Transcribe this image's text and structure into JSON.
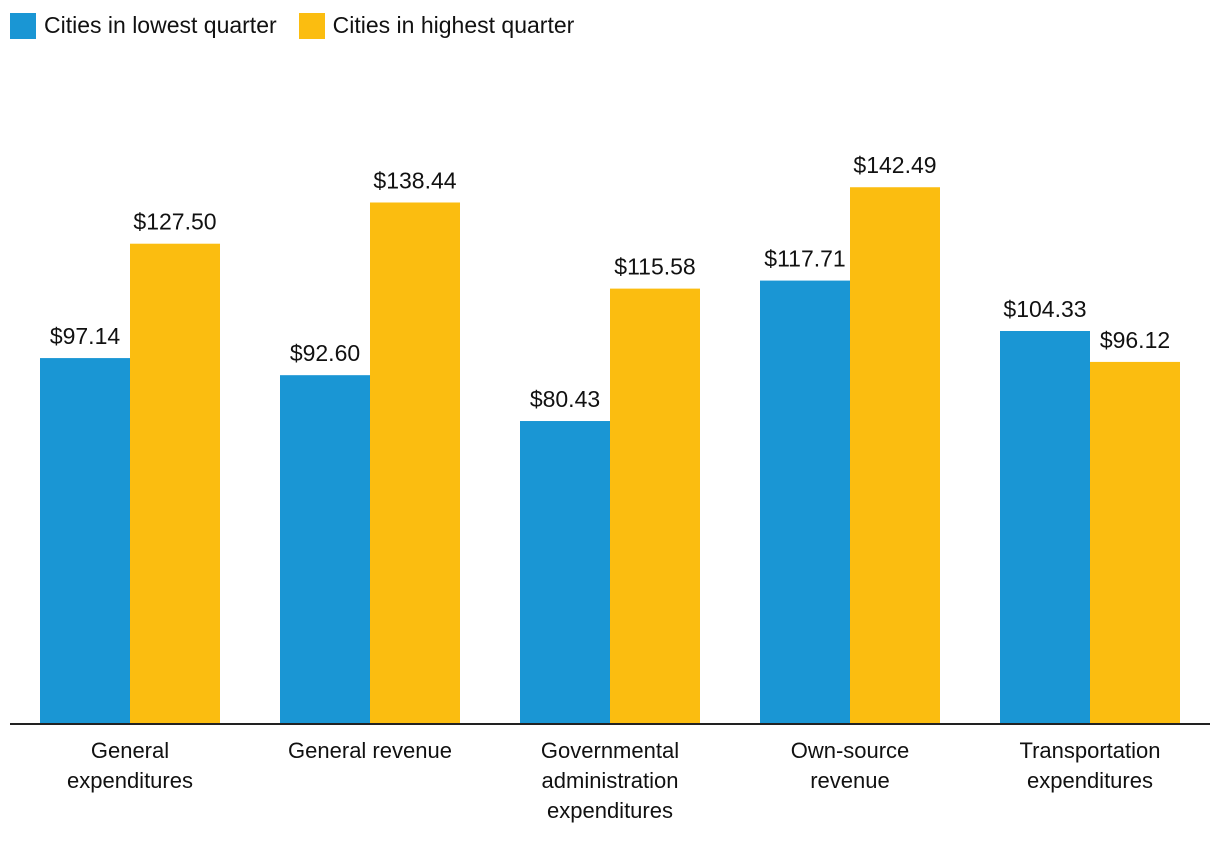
{
  "chart_data": {
    "type": "bar",
    "categories": [
      [
        "General",
        "expenditures"
      ],
      [
        "General revenue"
      ],
      [
        "Governmental",
        "administration",
        "expenditures"
      ],
      [
        "Own-source",
        "revenue"
      ],
      [
        "Transportation",
        "expenditures"
      ]
    ],
    "series": [
      {
        "name": "Cities in lowest quarter",
        "color": "#1a96d4",
        "values": [
          97.14,
          92.6,
          80.43,
          117.71,
          104.33
        ],
        "labels": [
          "$97.14",
          "$92.60",
          "$80.43",
          "$117.71",
          "$104.33"
        ]
      },
      {
        "name": "Cities in highest quarter",
        "color": "#fbbd10",
        "values": [
          127.5,
          138.44,
          115.58,
          142.49,
          96.12
        ],
        "labels": [
          "$127.50",
          "$138.44",
          "$115.58",
          "$142.49",
          "$96.12"
        ]
      }
    ],
    "ylim": [
      0,
      160
    ],
    "grid": false,
    "legend": "top-left"
  }
}
